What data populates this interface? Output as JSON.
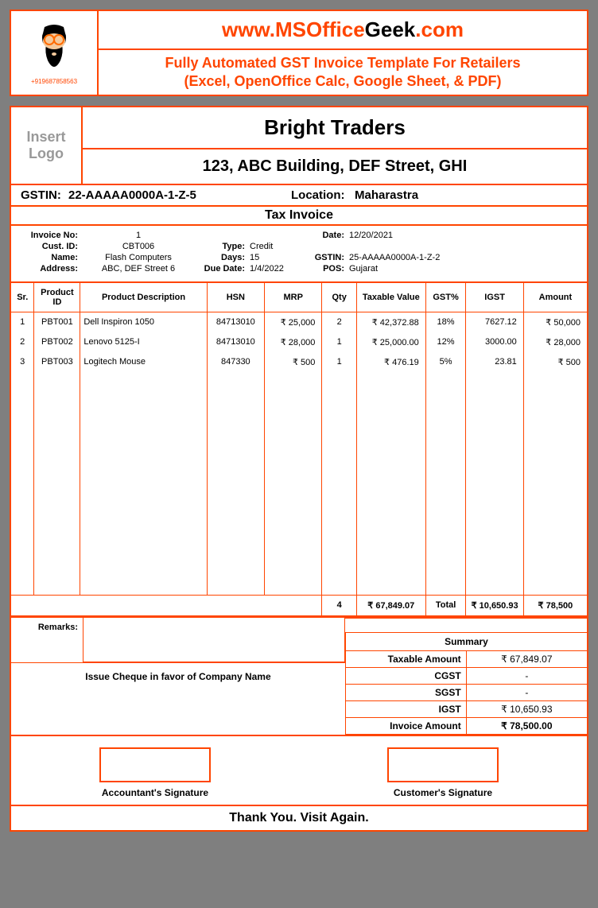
{
  "header": {
    "phone": "+919687858563",
    "url_pre": "www.",
    "url_brand1": "MSOffice",
    "url_brand2": "Geek",
    "url_post": ".com",
    "tagline": "Fully Automated GST Invoice Template For Retailers",
    "subtag": "(Excel, OpenOffice Calc, Google Sheet, & PDF)"
  },
  "company": {
    "logo_placeholder": "Insert Logo",
    "name": "Bright Traders",
    "address": "123, ABC Building, DEF Street, GHI",
    "gstin_label": "GSTIN:",
    "gstin": "22-AAAAA0000A-1-Z-5",
    "location_label": "Location:",
    "location": "Maharastra",
    "tax_title": "Tax Invoice"
  },
  "meta": {
    "invoice_no_lbl": "Invoice No:",
    "invoice_no": "1",
    "date_lbl": "Date:",
    "date": "12/20/2021",
    "cust_id_lbl": "Cust. ID:",
    "cust_id": "CBT006",
    "type_lbl": "Type:",
    "type": "Credit",
    "name_lbl": "Name:",
    "name": "Flash Computers",
    "days_lbl": "Days:",
    "days": "15",
    "gstin_lbl": "GSTIN:",
    "gstin": "25-AAAAA0000A-1-Z-2",
    "address_lbl": "Address:",
    "address": "ABC, DEF Street 6",
    "due_lbl": "Due Date:",
    "due": "1/4/2022",
    "pos_lbl": "POS:",
    "pos": "Gujarat"
  },
  "columns": {
    "sr": "Sr.",
    "pid": "Product ID",
    "desc": "Product Description",
    "hsn": "HSN",
    "mrp": "MRP",
    "qty": "Qty",
    "taxable": "Taxable Value",
    "gst": "GST%",
    "igst": "IGST",
    "amount": "Amount"
  },
  "items": [
    {
      "sr": "1",
      "pid": "PBT001",
      "desc": "Dell Inspiron 1050",
      "hsn": "84713010",
      "mrp": "₹ 25,000",
      "qty": "2",
      "taxable": "₹ 42,372.88",
      "gst": "18%",
      "igst": "7627.12",
      "amount": "₹ 50,000"
    },
    {
      "sr": "2",
      "pid": "PBT002",
      "desc": "Lenovo 5125-I",
      "hsn": "84713010",
      "mrp": "₹ 28,000",
      "qty": "1",
      "taxable": "₹ 25,000.00",
      "gst": "12%",
      "igst": "3000.00",
      "amount": "₹ 28,000"
    },
    {
      "sr": "3",
      "pid": "PBT003",
      "desc": "Logitech Mouse",
      "hsn": "847330",
      "mrp": "₹ 500",
      "qty": "1",
      "taxable": "₹ 476.19",
      "gst": "5%",
      "igst": "23.81",
      "amount": "₹ 500"
    }
  ],
  "totals": {
    "qty": "4",
    "taxable": "₹ 67,849.07",
    "label": "Total",
    "igst": "₹ 10,650.93",
    "amount": "₹ 78,500"
  },
  "remarks_lbl": "Remarks:",
  "cheque": "Issue Cheque in favor of Company Name",
  "summary": {
    "title": "Summary",
    "taxable_lbl": "Taxable Amount",
    "taxable": "₹ 67,849.07",
    "cgst_lbl": "CGST",
    "cgst": "-",
    "sgst_lbl": "SGST",
    "sgst": "-",
    "igst_lbl": "IGST",
    "igst": "₹ 10,650.93",
    "inv_lbl": "Invoice Amount",
    "inv": "₹ 78,500.00"
  },
  "sig1": "Accountant's Signature",
  "sig2": "Customer's Signature",
  "footer": "Thank You. Visit Again."
}
